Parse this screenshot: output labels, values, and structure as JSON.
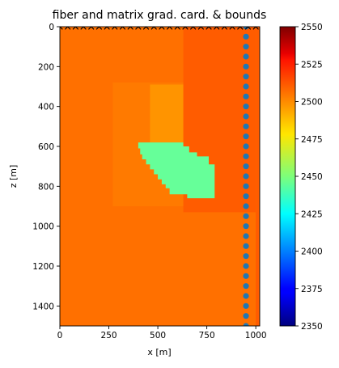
{
  "chart_data": {
    "type": "heatmap",
    "title": "fiber and matrix grad. card. & bounds",
    "xlabel": "x [m]",
    "ylabel": "z [m]",
    "xlim": [
      0,
      1000
    ],
    "ylim": [
      1500,
      0
    ],
    "x_ticks": [
      0,
      250,
      500,
      750,
      1000
    ],
    "y_ticks": [
      0,
      200,
      400,
      600,
      800,
      1000,
      1200,
      1400
    ],
    "colorbar": {
      "colormap": "jet",
      "vmin": 2350,
      "vmax": 2550,
      "ticks": [
        2350,
        2375,
        2400,
        2425,
        2450,
        2475,
        2500,
        2525,
        2550
      ]
    },
    "background_value": 2503,
    "regions": [
      {
        "value": 2507,
        "x0": 630,
        "x1": 1000,
        "z0": 0,
        "z1": 930
      },
      {
        "value": 2507,
        "x0": 1000,
        "x1": 1020,
        "z0": 0,
        "z1": 1500
      },
      {
        "value": 2501,
        "x0": 270,
        "x1": 630,
        "z0": 280,
        "z1": 900
      },
      {
        "value": 2496,
        "x0": 460,
        "x1": 630,
        "z0": 290,
        "z1": 580
      },
      {
        "value": 2445,
        "polygon": [
          [
            400,
            580
          ],
          [
            630,
            580
          ],
          [
            630,
            600
          ],
          [
            660,
            600
          ],
          [
            660,
            630
          ],
          [
            700,
            630
          ],
          [
            700,
            650
          ],
          [
            760,
            650
          ],
          [
            760,
            690
          ],
          [
            790,
            690
          ],
          [
            790,
            860
          ],
          [
            650,
            860
          ],
          [
            650,
            840
          ],
          [
            560,
            840
          ],
          [
            560,
            810
          ],
          [
            540,
            810
          ],
          [
            540,
            790
          ],
          [
            520,
            790
          ],
          [
            520,
            765
          ],
          [
            500,
            765
          ],
          [
            500,
            740
          ],
          [
            480,
            740
          ],
          [
            480,
            715
          ],
          [
            460,
            715
          ],
          [
            460,
            690
          ],
          [
            440,
            690
          ],
          [
            440,
            665
          ],
          [
            420,
            665
          ],
          [
            420,
            640
          ],
          [
            410,
            640
          ],
          [
            410,
            610
          ],
          [
            400,
            610
          ]
        ]
      }
    ],
    "sources": {
      "marker": "x",
      "z": 0,
      "x": [
        0,
        40,
        80,
        120,
        160,
        200,
        240,
        280,
        320,
        360,
        400,
        440,
        480,
        520,
        560,
        600,
        640,
        680,
        720,
        760,
        800,
        840,
        880,
        920,
        960,
        1000
      ]
    },
    "receivers": {
      "marker": "o",
      "color": "#1f77b4",
      "x": 950,
      "z": [
        0,
        50,
        100,
        150,
        200,
        250,
        300,
        350,
        400,
        450,
        500,
        550,
        600,
        650,
        700,
        750,
        800,
        850,
        900,
        950,
        1000,
        1050,
        1100,
        1150,
        1200,
        1250,
        1300,
        1350,
        1400,
        1450,
        1500
      ]
    }
  }
}
